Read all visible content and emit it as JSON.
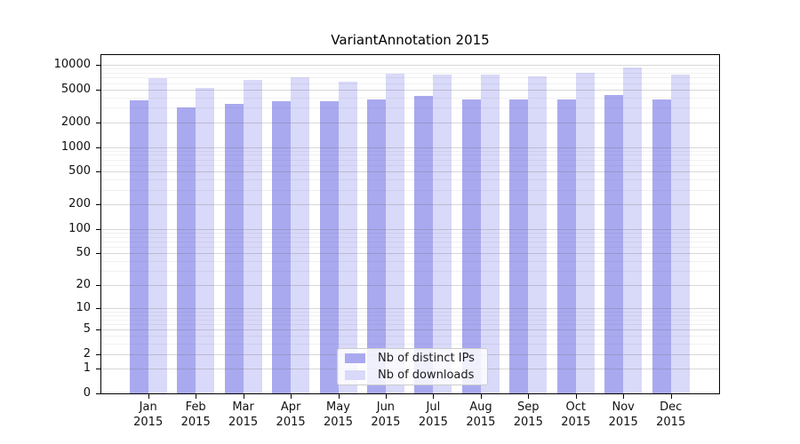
{
  "title": "VariantAnnotation 2015",
  "chart_data": {
    "type": "bar",
    "title": "VariantAnnotation 2015",
    "categories": [
      "Jan",
      "Feb",
      "Mar",
      "Apr",
      "May",
      "Jun",
      "Jul",
      "Aug",
      "Sep",
      "Oct",
      "Nov",
      "Dec"
    ],
    "category_year": "2015",
    "series": [
      {
        "name": "Nb of distinct IPs",
        "color": "#a9a9f0",
        "values": [
          3700,
          3000,
          3350,
          3650,
          3580,
          3770,
          4200,
          3800,
          3790,
          3820,
          4300,
          3800
        ]
      },
      {
        "name": "Nb of downloads",
        "color": "#d9d9f9",
        "values": [
          6900,
          5200,
          6600,
          7000,
          6300,
          7900,
          7550,
          7700,
          7280,
          8050,
          9200,
          7530
        ]
      }
    ],
    "yaxis": {
      "scale": "log1p",
      "ticks": [
        0,
        1,
        2,
        5,
        10,
        20,
        50,
        100,
        200,
        500,
        1000,
        2000,
        5000,
        10000
      ],
      "minor_gridlines": [
        3,
        4,
        6,
        7,
        8,
        9,
        30,
        40,
        60,
        70,
        80,
        90,
        300,
        400,
        600,
        700,
        800,
        900,
        3000,
        4000,
        6000,
        7000,
        8000,
        9000
      ],
      "max": 13500,
      "grid": true
    },
    "xlabel": "",
    "ylabel": "",
    "legend_position": "inside-bottom-center"
  }
}
